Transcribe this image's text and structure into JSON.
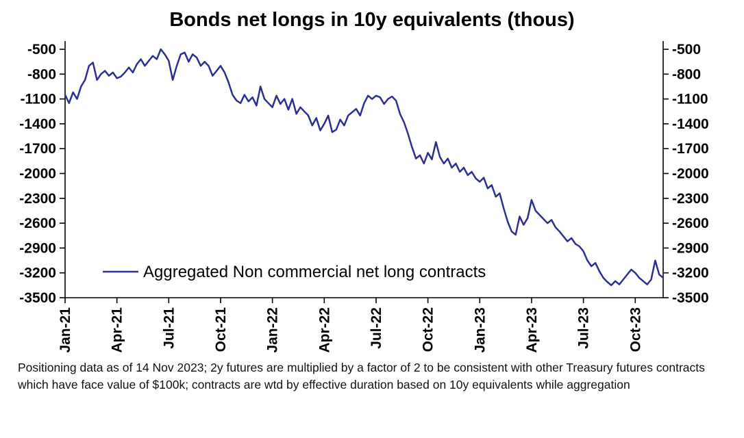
{
  "title": "Bonds net longs in 10y equivalents (thous)",
  "legend": "Aggregated Non commercial net long contracts",
  "footnote": "Positioning data as of 14 Nov 2023; 2y futures are multiplied by a factor of 2 to be consistent with other Treasury futures contracts which have face value of $100k; contracts are wtd by effective duration based on 10y equivalents while aggregation",
  "chart_data": {
    "type": "line",
    "title": "Bonds net longs in 10y equivalents (thous)",
    "x_unit": "weekly, Jan-2021 to mid-Nov-2023",
    "x_tick_labels": [
      "Jan-21",
      "Apr-21",
      "Jul-21",
      "Oct-21",
      "Jan-22",
      "Apr-22",
      "Jul-22",
      "Oct-22",
      "Jan-23",
      "Apr-23",
      "Jul-23",
      "Oct-23"
    ],
    "x_tick_indices": [
      0,
      13,
      26,
      39,
      52,
      65,
      78,
      91,
      104,
      117,
      130,
      143
    ],
    "y_ticks": [
      -500,
      -800,
      -1100,
      -1400,
      -1700,
      -2000,
      -2300,
      -2600,
      -2900,
      -3200,
      -3500
    ],
    "ylim": [
      -3500,
      -500
    ],
    "grid": false,
    "legend_position": "inside-bottom-left",
    "line_color": "#2a2f92",
    "series": [
      {
        "name": "Aggregated Non commercial net long contracts",
        "values": [
          -1050,
          -1150,
          -1020,
          -1100,
          -950,
          -870,
          -700,
          -660,
          -870,
          -800,
          -760,
          -820,
          -780,
          -850,
          -830,
          -780,
          -720,
          -780,
          -680,
          -620,
          -700,
          -640,
          -580,
          -620,
          -500,
          -560,
          -640,
          -870,
          -700,
          -560,
          -540,
          -650,
          -560,
          -600,
          -700,
          -650,
          -700,
          -820,
          -760,
          -700,
          -780,
          -900,
          -1050,
          -1120,
          -1150,
          -1050,
          -1130,
          -1080,
          -1180,
          -950,
          -1100,
          -1150,
          -1200,
          -1060,
          -1160,
          -1100,
          -1230,
          -1100,
          -1280,
          -1200,
          -1250,
          -1300,
          -1420,
          -1330,
          -1480,
          -1400,
          -1300,
          -1500,
          -1470,
          -1350,
          -1420,
          -1300,
          -1260,
          -1220,
          -1300,
          -1150,
          -1060,
          -1100,
          -1060,
          -1080,
          -1160,
          -1100,
          -1070,
          -1120,
          -1280,
          -1380,
          -1520,
          -1680,
          -1820,
          -1780,
          -1880,
          -1750,
          -1830,
          -1620,
          -1800,
          -1880,
          -1820,
          -1930,
          -1880,
          -1980,
          -1930,
          -2020,
          -1980,
          -2060,
          -2100,
          -2050,
          -2180,
          -2140,
          -2280,
          -2240,
          -2420,
          -2580,
          -2700,
          -2740,
          -2520,
          -2620,
          -2540,
          -2320,
          -2450,
          -2500,
          -2550,
          -2600,
          -2560,
          -2650,
          -2700,
          -2760,
          -2820,
          -2780,
          -2850,
          -2880,
          -2940,
          -3050,
          -3120,
          -3080,
          -3180,
          -3260,
          -3310,
          -3350,
          -3300,
          -3340,
          -3280,
          -3220,
          -3160,
          -3200,
          -3260,
          -3300,
          -3340,
          -3280,
          -3050,
          -3220,
          -3260
        ]
      }
    ]
  }
}
